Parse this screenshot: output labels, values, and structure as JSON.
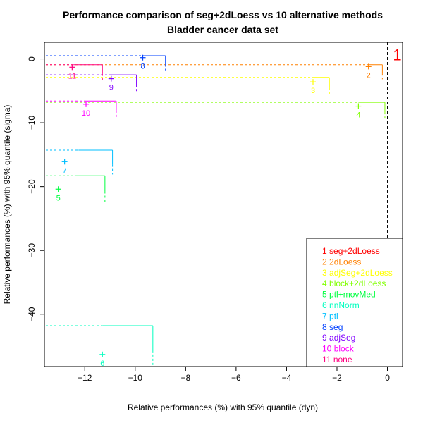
{
  "chart_data": {
    "type": "scatter",
    "title": "Performance comparison of seg+2dLoess vs 10 alternative methods",
    "subtitle": "Bladder cancer data set",
    "xlabel": "Relative performances (%) with 95% quantile (dyn)",
    "ylabel": "Relative performances (%) with 95% quantile (sigma)",
    "xlim": [
      -13.6,
      0.6
    ],
    "ylim": [
      -48.2,
      2.6
    ],
    "xticks": [
      -12,
      -10,
      -8,
      -6,
      -4,
      -2,
      0
    ],
    "yticks": [
      0,
      -10,
      -20,
      -30,
      -40
    ],
    "reference_lines": {
      "x": 0,
      "y": 0
    },
    "grid": false,
    "legend_position": "bottom-right",
    "points": [
      {
        "id": "1",
        "name": "seg+2dLoess",
        "color": "#ff0000",
        "x": 0,
        "y": 0,
        "q_x": 0,
        "q_y": 0
      },
      {
        "id": "2",
        "name": "2dLoess",
        "color": "#ff8000",
        "x": -0.75,
        "y": -1.2,
        "q_x": -0.2,
        "q_y": -0.9
      },
      {
        "id": "3",
        "name": "adjSeg+2dLoess",
        "color": "#ffff00",
        "x": -2.95,
        "y": -3.6,
        "q_x": -2.3,
        "q_y": -2.9
      },
      {
        "id": "4",
        "name": "block+2dLoess",
        "color": "#80ff00",
        "x": -1.15,
        "y": -7.4,
        "q_x": -0.1,
        "q_y": -6.8
      },
      {
        "id": "5",
        "name": "ptl+movMed",
        "color": "#00ff40",
        "x": -13.05,
        "y": -20.4,
        "q_x": -11.2,
        "q_y": -18.3
      },
      {
        "id": "6",
        "name": "nnNorm",
        "color": "#00ffbf",
        "x": -11.3,
        "y": -46.3,
        "q_x": -9.3,
        "q_y": -41.8
      },
      {
        "id": "7",
        "name": "ptl",
        "color": "#00bfff",
        "x": -12.8,
        "y": -16.1,
        "q_x": -10.9,
        "q_y": -14.3
      },
      {
        "id": "8",
        "name": "seg",
        "color": "#0040ff",
        "x": -9.7,
        "y": 0.2,
        "q_x": -8.8,
        "q_y": 0.5
      },
      {
        "id": "9",
        "name": "adjSeg",
        "color": "#8000ff",
        "x": -10.95,
        "y": -3.1,
        "q_x": -9.95,
        "q_y": -2.5
      },
      {
        "id": "10",
        "name": "block",
        "color": "#ff00ff",
        "x": -11.95,
        "y": -7.1,
        "q_x": -10.75,
        "q_y": -6.6
      },
      {
        "id": "11",
        "name": "none",
        "color": "#ff0080",
        "x": -12.5,
        "y": -1.3,
        "q_x": -11.3,
        "q_y": -0.9
      }
    ]
  }
}
